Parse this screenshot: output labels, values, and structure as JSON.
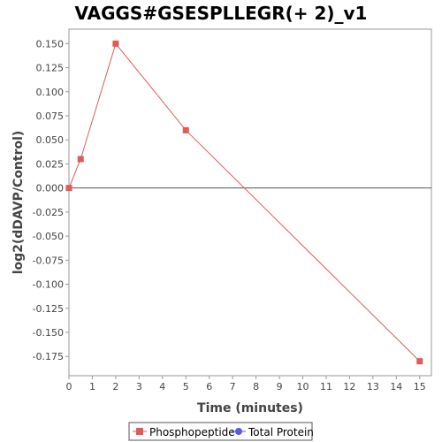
{
  "chart_data": {
    "type": "line",
    "title": "VAGGS#GSESPLLEGR(+ 2)_v1",
    "xlabel": "Time (minutes)",
    "ylabel": "log2(dDAVP/Control)",
    "xlim": [
      0,
      15.5
    ],
    "ylim": [
      -0.195,
      0.165
    ],
    "x_ticks": [
      0,
      1,
      2,
      3,
      4,
      5,
      6,
      7,
      8,
      9,
      10,
      11,
      12,
      13,
      14,
      15
    ],
    "x_tick_labels": [
      "0",
      "1",
      "2",
      "3",
      "4",
      "5",
      "6",
      "7",
      "8",
      "9",
      "10",
      "11",
      "12",
      "13",
      "14",
      "15"
    ],
    "y_ticks": [
      0.15,
      0.125,
      0.1,
      0.075,
      0.05,
      0.025,
      0.0,
      -0.025,
      -0.05,
      -0.075,
      -0.1,
      -0.125,
      -0.15,
      -0.175
    ],
    "y_tick_labels": [
      "0.150",
      "0.125",
      "0.100",
      "0.075",
      "0.050",
      "0.025",
      "0.000",
      "-0.025",
      "-0.050",
      "-0.075",
      "-0.100",
      "-0.125",
      "-0.150",
      "-0.175"
    ],
    "grid": false,
    "zero_line": true,
    "legend_position": "bottom",
    "series": [
      {
        "name": "Phosphopeptide",
        "color": "#e05a5a",
        "marker": "square",
        "x": [
          0,
          0.5,
          2,
          5,
          15
        ],
        "y": [
          0.0,
          0.03,
          0.15,
          0.06,
          -0.18
        ]
      },
      {
        "name": "Total Protein",
        "color": "#5a5ae0",
        "marker": "circle",
        "x": [],
        "y": []
      }
    ]
  }
}
